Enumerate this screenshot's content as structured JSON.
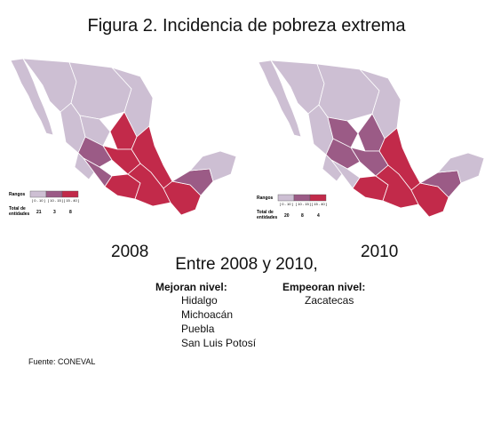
{
  "title": "Figura 2. Incidencia de pobreza extrema",
  "colors": {
    "low": "#cdbfd3",
    "mid": "#9b5b86",
    "high": "#c22a4a",
    "border": "#ffffff"
  },
  "maps": [
    {
      "year": "2008",
      "legend": {
        "rangos_label": "Rangos",
        "ranges": [
          "[ 0 - 10 ]",
          "[ 10 - 15 ]",
          "[ 15 - 40 ]"
        ],
        "total_label_1": "Total de",
        "total_label_2": "entidades",
        "counts": [
          "21",
          "3",
          "8"
        ]
      }
    },
    {
      "year": "2010",
      "legend": {
        "rangos_label": "Rangos",
        "ranges": [
          "[ 0 - 10 ]",
          "[ 10 - 15 ]",
          "[ 15 - 40 ]"
        ],
        "total_label_1": "Total de",
        "total_label_2": "entidades",
        "counts": [
          "20",
          "8",
          "4"
        ]
      }
    }
  ],
  "subtitle": "Entre 2008 y 2010,",
  "improve": {
    "heading": "Mejoran nivel:",
    "items": [
      "Hidalgo",
      "Michoacán",
      "Puebla",
      "San Luis Potosí"
    ]
  },
  "worsen": {
    "heading": "Empeoran nivel:",
    "items": [
      "Zacatecas"
    ]
  },
  "source": "Fuente: CONEVAL"
}
